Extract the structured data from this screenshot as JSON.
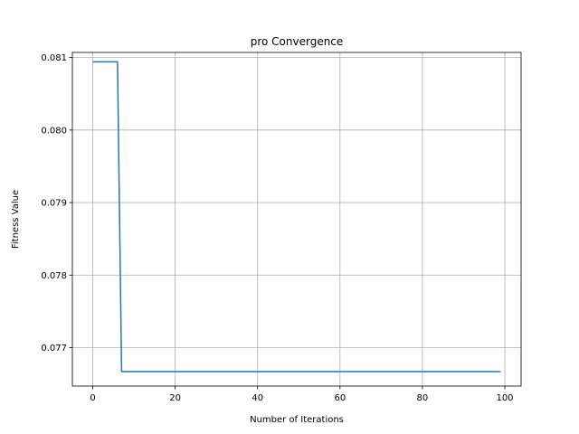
{
  "chart_data": {
    "type": "line",
    "title": "pro Convergence",
    "xlabel": "Number of Iterations",
    "ylabel": "Fitness Value",
    "xlim": [
      -4.95,
      103.95
    ],
    "ylim": [
      0.07647,
      0.08107
    ],
    "grid": true,
    "x_ticks": [
      0,
      20,
      40,
      60,
      80,
      100
    ],
    "x_tick_labels": [
      "0",
      "20",
      "40",
      "60",
      "80",
      "100"
    ],
    "y_ticks": [
      0.077,
      0.078,
      0.079,
      0.08,
      0.081
    ],
    "y_tick_labels": [
      "0.077",
      "0.078",
      "0.079",
      "0.080",
      "0.081"
    ],
    "series": [
      {
        "color": "#1f77b4",
        "x": [
          0,
          6,
          7,
          99
        ],
        "y": [
          0.08094,
          0.08094,
          0.07667,
          0.07667
        ]
      }
    ]
  }
}
